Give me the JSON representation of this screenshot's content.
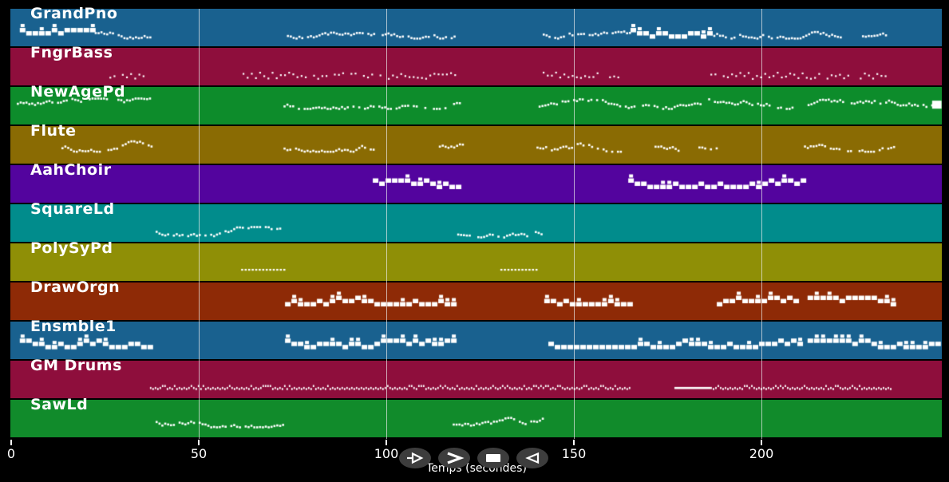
{
  "axis": {
    "label": "Temps (secondes)",
    "ticks": [
      "0",
      "50",
      "100",
      "150",
      "200"
    ],
    "tick_values": [
      0,
      50,
      100,
      150,
      200
    ],
    "range_seconds": [
      0,
      248
    ]
  },
  "controls": [
    {
      "name": "play",
      "icon": "play-icon"
    },
    {
      "name": "fast-forward",
      "icon": "fast-forward-icon"
    },
    {
      "name": "stop",
      "icon": "stop-icon"
    },
    {
      "name": "rewind",
      "icon": "rewind-icon"
    }
  ],
  "colors": {
    "background": "#000000",
    "note": "#ffffff",
    "grid": "#ebebeb",
    "button_bg": "#3d3d3d",
    "text": "#ffffff"
  },
  "chart_data": {
    "type": "heatmap",
    "title": "",
    "xlabel": "Temps (secondes)",
    "ylabel": "",
    "xlim": [
      0,
      248
    ],
    "grid": "vertical 50s",
    "tracks": [
      {
        "name": "GrandPno",
        "color": "#19618f",
        "note_y": 0.66,
        "segments": [
          {
            "start": 2.3,
            "end": 21.5,
            "style": "blocks"
          },
          {
            "start": 21.5,
            "end": 37.4,
            "style": "jagged"
          },
          {
            "start": 73.5,
            "end": 119.4,
            "style": "jagged"
          },
          {
            "start": 141.7,
            "end": 165.1,
            "style": "jagged"
          },
          {
            "start": 165.1,
            "end": 186.4,
            "style": "blocks"
          },
          {
            "start": 186.4,
            "end": 221.5,
            "style": "jagged"
          },
          {
            "start": 226.8,
            "end": 233.2,
            "style": "jagged"
          }
        ]
      },
      {
        "name": "FngrBass",
        "color": "#8e0e3c",
        "note_y": 0.72,
        "segments": [
          {
            "start": 26.2,
            "end": 35.5,
            "style": "dots"
          },
          {
            "start": 61.7,
            "end": 119.0,
            "style": "dots"
          },
          {
            "start": 141.7,
            "end": 161.9,
            "style": "dots"
          },
          {
            "start": 186.4,
            "end": 233.2,
            "style": "dots"
          }
        ]
      },
      {
        "name": "NewAgePd",
        "color": "#0d8c2b",
        "note_y": 0.45,
        "segments": [
          {
            "start": 1.5,
            "end": 37.4,
            "style": "jagged"
          },
          {
            "start": 72.6,
            "end": 119.4,
            "style": "jagged"
          },
          {
            "start": 140.6,
            "end": 208.7,
            "style": "jagged"
          },
          {
            "start": 212.3,
            "end": 245.5,
            "style": "jagged"
          },
          {
            "start": 245.5,
            "end": 248.0,
            "style": "bar"
          }
        ]
      },
      {
        "name": "Flute",
        "color": "#8a6b03",
        "note_y": 0.55,
        "segments": [
          {
            "start": 13.4,
            "end": 37.4,
            "style": "jagged"
          },
          {
            "start": 72.6,
            "end": 97.0,
            "style": "jagged"
          },
          {
            "start": 114.0,
            "end": 120.4,
            "style": "jagged"
          },
          {
            "start": 138.5,
            "end": 163.0,
            "style": "jagged"
          },
          {
            "start": 171.5,
            "end": 177.9,
            "style": "jagged"
          },
          {
            "start": 183.2,
            "end": 188.5,
            "style": "jagged"
          },
          {
            "start": 209.8,
            "end": 235.3,
            "style": "jagged"
          }
        ]
      },
      {
        "name": "AahChoir",
        "color": "#53049e",
        "note_y": 0.5,
        "segments": [
          {
            "start": 96.4,
            "end": 119.4,
            "style": "blocks"
          },
          {
            "start": 164.5,
            "end": 210.6,
            "style": "blocks"
          }
        ]
      },
      {
        "name": "SquareLd",
        "color": "#018c8c",
        "note_y": 0.75,
        "segments": [
          {
            "start": 38.5,
            "end": 71.9,
            "style": "jagged"
          },
          {
            "start": 118.9,
            "end": 141.5,
            "style": "jagged"
          }
        ]
      },
      {
        "name": "PolySyPd",
        "color": "#8f8f06",
        "note_y": 0.68,
        "segments": [
          {
            "start": 61.3,
            "end": 72.6,
            "style": "dashes"
          },
          {
            "start": 130.4,
            "end": 140.6,
            "style": "dashes"
          }
        ]
      },
      {
        "name": "DrawOrgn",
        "color": "#8e2a06",
        "note_y": 0.5,
        "segments": [
          {
            "start": 73.0,
            "end": 118.9,
            "style": "blocks"
          },
          {
            "start": 142.1,
            "end": 165.1,
            "style": "blocks"
          },
          {
            "start": 188.1,
            "end": 210.0,
            "style": "blocks"
          },
          {
            "start": 212.3,
            "end": 235.3,
            "style": "blocks"
          }
        ]
      },
      {
        "name": "Ensmble1",
        "color": "#19618f",
        "note_y": 0.6,
        "segments": [
          {
            "start": 2.3,
            "end": 37.4,
            "style": "blocks"
          },
          {
            "start": 73.0,
            "end": 118.9,
            "style": "blocks"
          },
          {
            "start": 143.2,
            "end": 209.8,
            "style": "blocks"
          },
          {
            "start": 212.3,
            "end": 246.4,
            "style": "blocks"
          }
        ]
      },
      {
        "name": "GM Drums",
        "color": "#8e0e3c",
        "note_y": 0.7,
        "segments": [
          {
            "start": 37.0,
            "end": 165.1,
            "style": "drums"
          },
          {
            "start": 176.8,
            "end": 186.4,
            "style": "line"
          },
          {
            "start": 186.4,
            "end": 234.3,
            "style": "drums"
          }
        ]
      },
      {
        "name": "SawLd",
        "color": "#118b2b",
        "note_y": 0.6,
        "segments": [
          {
            "start": 38.5,
            "end": 72.3,
            "style": "jagged"
          },
          {
            "start": 117.7,
            "end": 141.5,
            "style": "jagged"
          }
        ]
      }
    ]
  }
}
